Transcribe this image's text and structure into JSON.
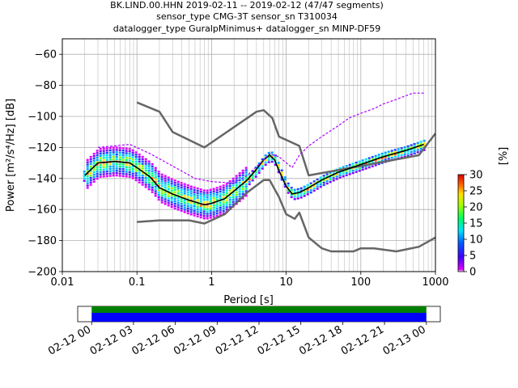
{
  "chart_data": [
    {
      "type": "line",
      "title_lines": [
        "BK.LIND.00.HHN   2019-02-11 -- 2019-02-12  (47/47 segments)",
        "sensor_type CMG-3T sensor_sn T310034",
        "datalogger_type GuralpMinimus+ datalogger_sn MINP-DF59"
      ],
      "xlabel": "Period [s]",
      "ylabel": "Power [m²/s⁴/Hz] [dB]",
      "xscale": "log",
      "xlim": [
        0.01,
        1000
      ],
      "ylim": [
        -200,
        -50
      ],
      "x_ticks": [
        0.01,
        0.1,
        1,
        10,
        100,
        1000
      ],
      "x_tick_labels": [
        "0.01",
        "0.1",
        "1",
        "10",
        "100",
        "1000"
      ],
      "y_ticks": [
        -200,
        -180,
        -160,
        -140,
        -120,
        -100,
        -80,
        -60
      ],
      "y_tick_labels": [
        "−200",
        "−180",
        "−160",
        "−140",
        "−120",
        "−100",
        "−80",
        "−60"
      ],
      "grid": true,
      "series": [
        {
          "color": "#666666",
          "x": [
            0.1,
            0.2,
            0.3,
            0.8,
            4,
            5,
            6.5,
            8,
            15,
            20,
            100,
            600,
            1000
          ],
          "y": [
            -91,
            -97,
            -110,
            -120,
            -97,
            -96,
            -101,
            -113,
            -119,
            -138,
            -132,
            -125,
            -111
          ]
        },
        {
          "color": "#666666",
          "x": [
            0.1,
            0.2,
            0.5,
            0.8,
            1.5,
            3,
            5,
            6,
            8,
            10,
            13,
            15,
            20,
            30,
            40,
            60,
            80,
            100,
            150,
            300,
            600,
            1000
          ],
          "y": [
            -168,
            -167,
            -167,
            -169,
            -163,
            -149,
            -141,
            -141,
            -152,
            -163,
            -166,
            -162,
            -178,
            -185,
            -187,
            -187,
            -187,
            -185,
            -185,
            -187,
            -184,
            -178
          ]
        },
        {
          "color": "#000000",
          "x": [
            0.02,
            0.03,
            0.05,
            0.08,
            0.1,
            0.15,
            0.2,
            0.3,
            0.5,
            0.8,
            1,
            1.5,
            2,
            3,
            4,
            5,
            6,
            7,
            8,
            10,
            12,
            15,
            20,
            30,
            50,
            100,
            200,
            400,
            700
          ],
          "y": [
            -138,
            -130,
            -129,
            -130,
            -133,
            -139,
            -146,
            -150,
            -154,
            -157,
            -156,
            -153,
            -148,
            -141,
            -134,
            -128,
            -125,
            -128,
            -135,
            -145,
            -150,
            -149,
            -146,
            -141,
            -136,
            -131,
            -126,
            -122,
            -118
          ]
        },
        {
          "color": "#aa00ff",
          "x": [
            0.03,
            0.05,
            0.08,
            0.15,
            0.3,
            0.6,
            1,
            2,
            3,
            5,
            6,
            8,
            12,
            15,
            20,
            30,
            50,
            70,
            100,
            150,
            200,
            300,
            500,
            700
          ],
          "y": [
            -120,
            -119,
            -118,
            -124,
            -132,
            -140,
            -142,
            -143,
            -138,
            -128,
            -124,
            -126,
            -133,
            -125,
            -119,
            -113,
            -106,
            -101,
            -98,
            -95,
            -92,
            -89,
            -85,
            -85
          ]
        }
      ],
      "colorbar": {
        "label": "[%]",
        "range": [
          0,
          30
        ],
        "ticks": [
          0,
          5,
          10,
          15,
          20,
          25,
          30
        ],
        "tick_labels": [
          "0",
          "5",
          "10",
          "15",
          "20",
          "25",
          "30"
        ]
      }
    },
    {
      "type": "timeline",
      "xlim": [
        "2019-02-11T23:00",
        "2019-02-13T01:00"
      ],
      "x_tick_labels": [
        "02-12 00",
        "02-12 03",
        "02-12 06",
        "02-12 09",
        "02-12 12",
        "02-12 15",
        "02-12 18",
        "02-12 21",
        "02-13 00"
      ],
      "x_tick_hours": [
        0,
        3,
        6,
        9,
        12,
        15,
        18,
        21,
        24
      ],
      "coverage": [
        {
          "start_hour": 0,
          "end_hour": 24,
          "color": "#008000"
        },
        {
          "start_hour": 0,
          "end_hour": 24,
          "color": "#0000ff"
        }
      ]
    }
  ]
}
